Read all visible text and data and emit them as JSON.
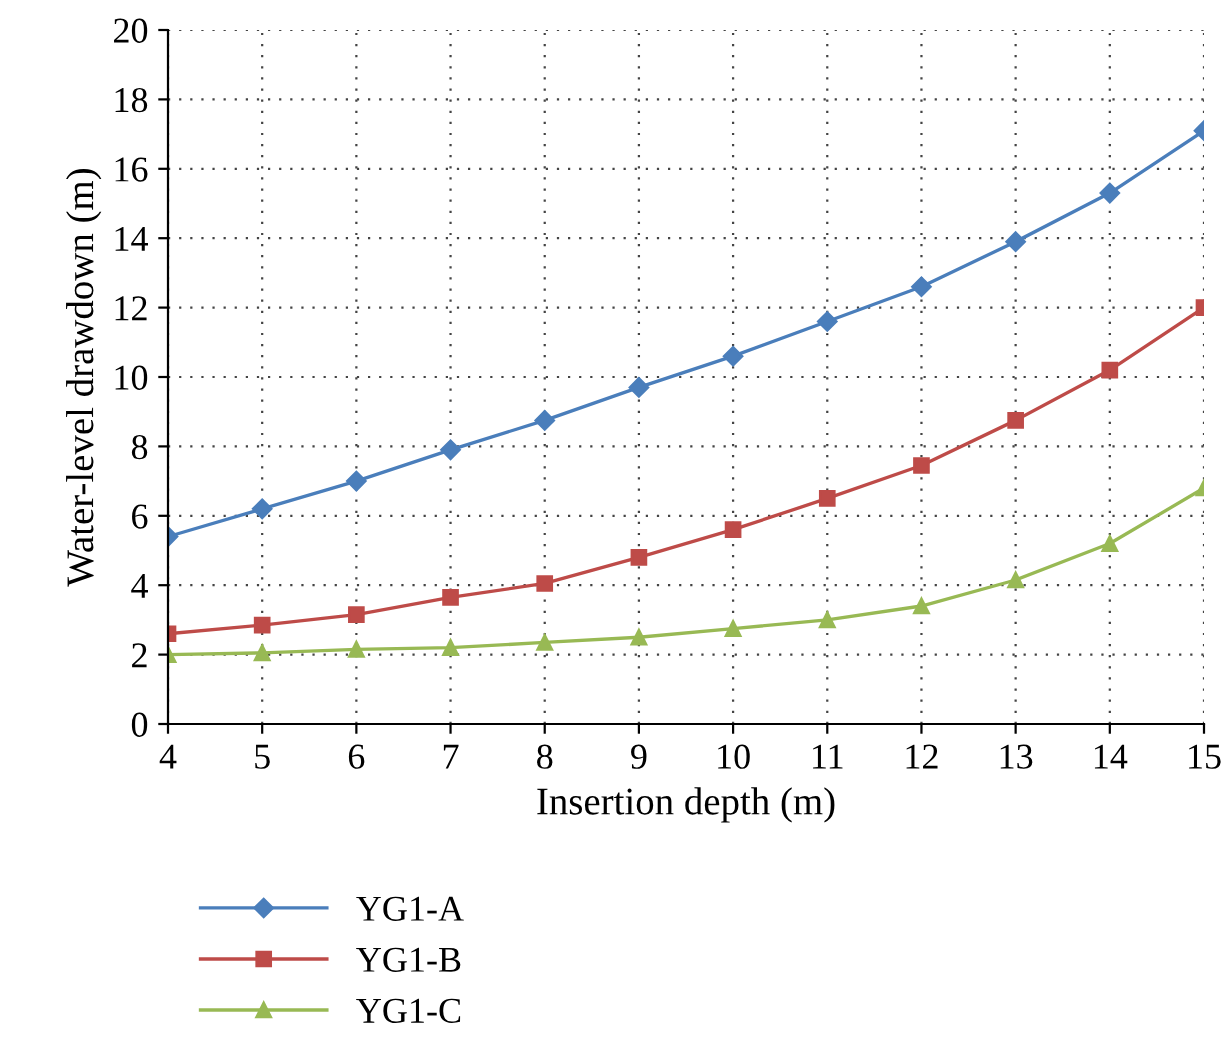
{
  "chart_data": {
    "type": "line",
    "xlabel": "Insertion depth (m)",
    "ylabel": "Water-level drawdown (m)",
    "x": [
      4,
      5,
      6,
      7,
      8,
      9,
      10,
      11,
      12,
      13,
      14,
      15
    ],
    "series": [
      {
        "name": "YG1-A",
        "color": "#4a7ebb",
        "marker": "diamond",
        "values": [
          5.4,
          6.2,
          7.0,
          7.9,
          8.75,
          9.7,
          10.6,
          11.6,
          12.6,
          13.9,
          15.3,
          17.1
        ]
      },
      {
        "name": "YG1-B",
        "color": "#be4b48",
        "marker": "square",
        "values": [
          2.6,
          2.85,
          3.15,
          3.65,
          4.05,
          4.8,
          5.6,
          6.5,
          7.45,
          8.75,
          10.2,
          12.0
        ]
      },
      {
        "name": "YG1-C",
        "color": "#98b954",
        "marker": "triangle",
        "values": [
          2.0,
          2.05,
          2.15,
          2.2,
          2.35,
          2.5,
          2.75,
          3.0,
          3.4,
          4.15,
          5.2,
          6.8
        ]
      }
    ],
    "xlim": [
      4,
      15
    ],
    "xticks": [
      4,
      5,
      6,
      7,
      8,
      9,
      10,
      11,
      12,
      13,
      14,
      15
    ],
    "ylim": [
      0,
      20
    ],
    "yticks": [
      0,
      2,
      4,
      6,
      8,
      10,
      12,
      14,
      16,
      18,
      20
    ],
    "grid": true,
    "legend": "bottom left",
    "line_style": "solid"
  }
}
